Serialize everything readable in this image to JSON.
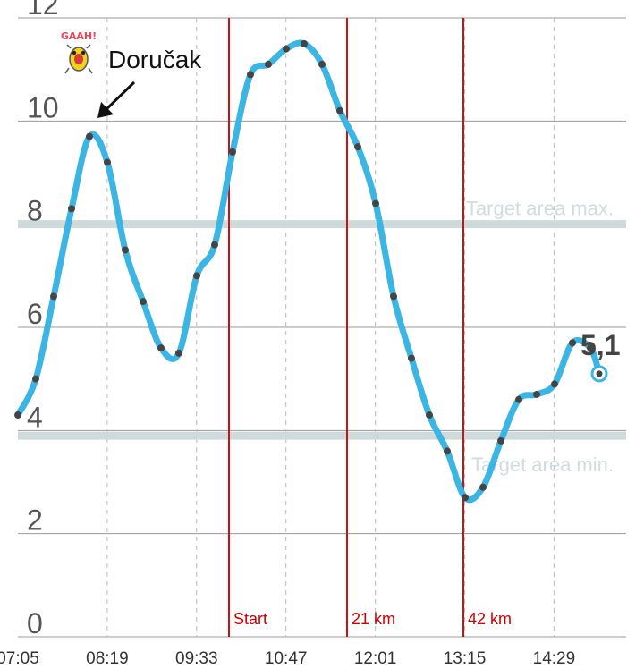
{
  "chart_data": {
    "type": "line",
    "title": "",
    "xlabel": "",
    "ylabel": "",
    "ylim": [
      0,
      12
    ],
    "yticks": [
      "0",
      "2",
      "4",
      "6",
      "8",
      "10",
      "12"
    ],
    "xticks": [
      "07:05",
      "08:19",
      "09:33",
      "10:47",
      "12:01",
      "13:15",
      "14:29"
    ],
    "grid": true,
    "x_minutes": [
      0,
      10,
      20,
      30,
      40,
      50,
      60,
      70,
      80,
      90,
      100,
      110,
      120,
      130,
      140,
      150,
      160,
      170,
      180,
      190,
      200,
      210,
      220,
      230,
      240,
      250,
      260,
      270,
      280,
      290,
      300,
      310,
      320,
      325
    ],
    "series": [
      {
        "values": [
          4.3,
          5.0,
          6.6,
          8.3,
          9.7,
          9.2,
          7.5,
          6.5,
          5.6,
          5.5,
          7.0,
          7.6,
          9.4,
          10.9,
          11.1,
          11.4,
          11.5,
          11.1,
          10.2,
          9.5,
          8.4,
          6.6,
          5.4,
          4.3,
          3.6,
          2.7,
          2.9,
          3.8,
          4.6,
          4.7,
          4.9,
          5.7,
          5.6,
          5.1
        ]
      }
    ],
    "last_value_label": "5,1",
    "target_lines": [
      {
        "value": 8.0,
        "label": "Target area max."
      },
      {
        "value": 3.9,
        "label": "Target area min."
      }
    ],
    "event_markers": [
      {
        "label": "Start",
        "x": 118
      },
      {
        "label": "21 km",
        "x": 184
      },
      {
        "label": "42 km",
        "x": 249
      }
    ],
    "annotations": [
      {
        "text": "Doručak",
        "badge": "GAAH!",
        "point_index": 4
      }
    ]
  },
  "colors": {
    "line": "#3bb5e3",
    "point": "#444444",
    "marker": "#cc1111",
    "target": "#cfdada",
    "grid": "#999999",
    "dashed_grid": "#bbbbbb"
  }
}
